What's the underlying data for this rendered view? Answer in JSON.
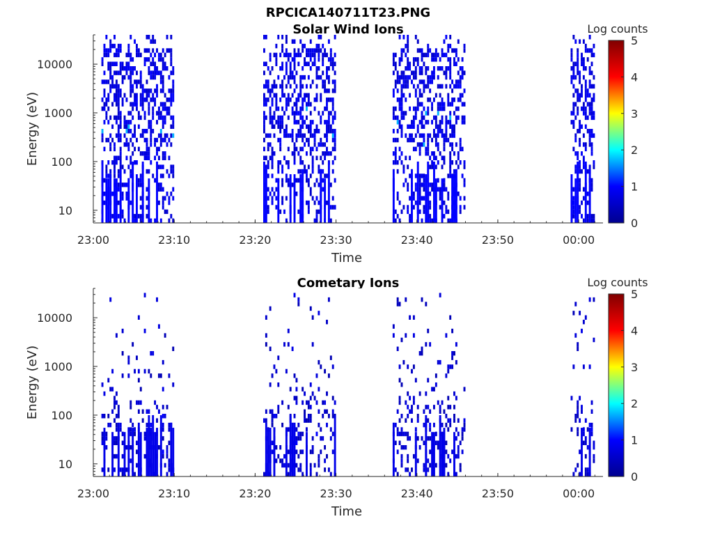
{
  "figure": {
    "title": "RPCICA140711T23.PNG"
  },
  "colormap": [
    "#00008f",
    "#0000ff",
    "#00ffff",
    "#ffff00",
    "#ff0000",
    "#800000"
  ],
  "chart_data": [
    {
      "type": "heatmap",
      "title": "Solar Wind Ions",
      "xlabel": "Time",
      "ylabel": "Energy (eV)",
      "y_scale": "log",
      "ylim": [
        5.5,
        40000
      ],
      "xlim": [
        "23:00",
        "00:03"
      ],
      "x_ticks": [
        "23:00",
        "23:10",
        "23:20",
        "23:30",
        "23:40",
        "23:50",
        "00:00"
      ],
      "y_ticks": [
        10,
        100,
        1000,
        10000
      ],
      "y_tick_labels": [
        "10",
        "100",
        "1000",
        "10000"
      ],
      "colorbar": {
        "label": "Log counts",
        "range": [
          0,
          5
        ],
        "ticks": [
          "0",
          "1",
          "2",
          "3",
          "4",
          "5"
        ]
      },
      "data_gaps": [
        [
          "23:10",
          "23:21"
        ],
        [
          "23:30",
          "23:37"
        ],
        [
          "23:46",
          "23:59"
        ]
      ],
      "time_intervals": [
        [
          "23:01",
          "23:10"
        ],
        [
          "23:21",
          "23:30"
        ],
        [
          "23:37",
          "23:46"
        ],
        [
          "23:59",
          "00:02"
        ]
      ],
      "typical_log_counts": [
        0.5,
        1.0
      ],
      "peak_log_counts": 1.7,
      "peak_energy_eV": 500
    },
    {
      "type": "heatmap",
      "title": "Cometary Ions",
      "xlabel": "Time",
      "ylabel": "Energy (eV)",
      "y_scale": "log",
      "ylim": [
        5.5,
        40000
      ],
      "xlim": [
        "23:00",
        "00:03"
      ],
      "x_ticks": [
        "23:00",
        "23:10",
        "23:20",
        "23:30",
        "23:40",
        "23:50",
        "00:00"
      ],
      "y_ticks": [
        10,
        100,
        1000,
        10000
      ],
      "y_tick_labels": [
        "10",
        "100",
        "1000",
        "10000"
      ],
      "colorbar": {
        "label": "Log counts",
        "range": [
          0,
          5
        ],
        "ticks": [
          "0",
          "1",
          "2",
          "3",
          "4",
          "5"
        ]
      },
      "data_gaps": [
        [
          "23:10",
          "23:21"
        ],
        [
          "23:30",
          "23:37"
        ],
        [
          "23:46",
          "23:59"
        ]
      ],
      "time_intervals": [
        [
          "23:01",
          "23:10"
        ],
        [
          "23:21",
          "23:30"
        ],
        [
          "23:37",
          "23:46"
        ],
        [
          "23:59",
          "00:02"
        ]
      ],
      "typical_log_counts": [
        0.3,
        0.8
      ],
      "peak_log_counts": 1.0,
      "peak_energy_eV": 40
    }
  ]
}
